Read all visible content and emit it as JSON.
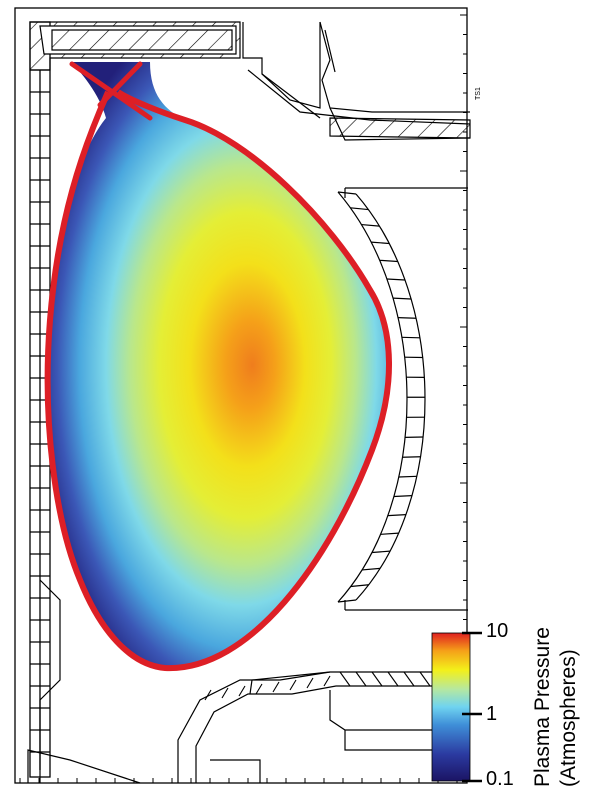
{
  "colorbar": {
    "title_line1": "Plasma Pressure",
    "title_line2": "(Atmospheres)",
    "ticks": [
      {
        "label": "10",
        "value": 10
      },
      {
        "label": "1",
        "value": 1
      },
      {
        "label": "0.1",
        "value": 0.1
      }
    ],
    "scale": "log",
    "colors_low_to_high": [
      "#1b1464",
      "#2b3aa0",
      "#3f8fd8",
      "#6fd3f0",
      "#b5e8a0",
      "#f3f01a",
      "#f5a019",
      "#e02020"
    ]
  },
  "separatrix_color": "#dd1f26",
  "shot_id": "TS1"
}
